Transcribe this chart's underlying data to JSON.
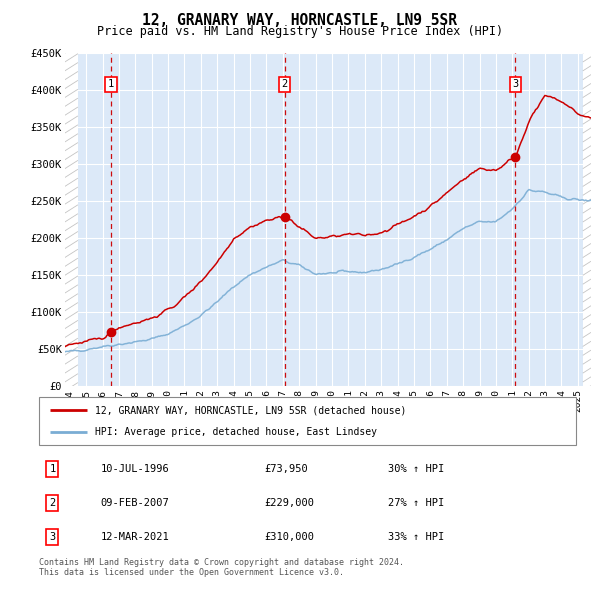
{
  "title": "12, GRANARY WAY, HORNCASTLE, LN9 5SR",
  "subtitle": "Price paid vs. HM Land Registry's House Price Index (HPI)",
  "ylim": [
    0,
    450000
  ],
  "yticks": [
    0,
    50000,
    100000,
    150000,
    200000,
    250000,
    300000,
    350000,
    400000,
    450000
  ],
  "ytick_labels": [
    "£0",
    "£50K",
    "£100K",
    "£150K",
    "£200K",
    "£250K",
    "£300K",
    "£350K",
    "£400K",
    "£450K"
  ],
  "xlim_start": 1993.7,
  "xlim_end": 2025.8,
  "xticks": [
    1994,
    1995,
    1996,
    1997,
    1998,
    1999,
    2000,
    2001,
    2002,
    2003,
    2004,
    2005,
    2006,
    2007,
    2008,
    2009,
    2010,
    2011,
    2012,
    2013,
    2014,
    2015,
    2016,
    2017,
    2018,
    2019,
    2020,
    2021,
    2022,
    2023,
    2024,
    2025
  ],
  "sale_dates": [
    1996.53,
    2007.11,
    2021.19
  ],
  "sale_prices": [
    73950,
    229000,
    310000
  ],
  "sale_labels": [
    "1",
    "2",
    "3"
  ],
  "legend_line1": "12, GRANARY WAY, HORNCASTLE, LN9 5SR (detached house)",
  "legend_line2": "HPI: Average price, detached house, East Lindsey",
  "table_rows": [
    [
      "1",
      "10-JUL-1996",
      "£73,950",
      "30% ↑ HPI"
    ],
    [
      "2",
      "09-FEB-2007",
      "£229,000",
      "27% ↑ HPI"
    ],
    [
      "3",
      "12-MAR-2021",
      "£310,000",
      "33% ↑ HPI"
    ]
  ],
  "footer": "Contains HM Land Registry data © Crown copyright and database right 2024.\nThis data is licensed under the Open Government Licence v3.0.",
  "background_color": "#dce9f8",
  "hatch_color": "#aaaaaa",
  "grid_color": "#ffffff",
  "red_line_color": "#cc0000",
  "blue_line_color": "#7aadd4",
  "sale_marker_color": "#cc0000",
  "dashed_line_color": "#cc0000",
  "hpi_anchors_x": [
    1993.7,
    1994,
    1995,
    1996,
    1997,
    1998,
    1999,
    2000,
    2001,
    2002,
    2003,
    2004,
    2005,
    2006,
    2007,
    2008,
    2009,
    2010,
    2011,
    2012,
    2013,
    2014,
    2015,
    2016,
    2017,
    2018,
    2019,
    2020,
    2021,
    2022,
    2023,
    2024,
    2025,
    2025.8
  ],
  "hpi_anchors_y": [
    46000,
    47000,
    50000,
    54000,
    57000,
    60000,
    64000,
    71000,
    82000,
    96000,
    114000,
    135000,
    151000,
    161000,
    170000,
    163000,
    152000,
    153000,
    155000,
    154000,
    158000,
    165000,
    175000,
    185000,
    198000,
    213000,
    222000,
    222000,
    240000,
    265000,
    262000,
    255000,
    252000,
    250000
  ],
  "prop_anchors_x": [
    1993.7,
    1994,
    1995,
    1996,
    1996.53,
    1997,
    1998,
    1999,
    2000,
    2001,
    2002,
    2003,
    2004,
    2005,
    2006,
    2007.11,
    2007.5,
    2008,
    2009,
    2010,
    2011,
    2012,
    2013,
    2014,
    2015,
    2016,
    2017,
    2018,
    2019,
    2020,
    2021.19,
    2022,
    2023,
    2024,
    2025,
    2025.8
  ],
  "prop_anchors_y": [
    56000,
    57000,
    60000,
    65000,
    73950,
    80000,
    86000,
    92000,
    103000,
    120000,
    142000,
    168000,
    200000,
    215000,
    224000,
    229000,
    224000,
    215000,
    200000,
    202000,
    205000,
    204000,
    208000,
    218000,
    230000,
    243000,
    261000,
    280000,
    294000,
    292000,
    310000,
    358000,
    392000,
    385000,
    368000,
    362000
  ]
}
